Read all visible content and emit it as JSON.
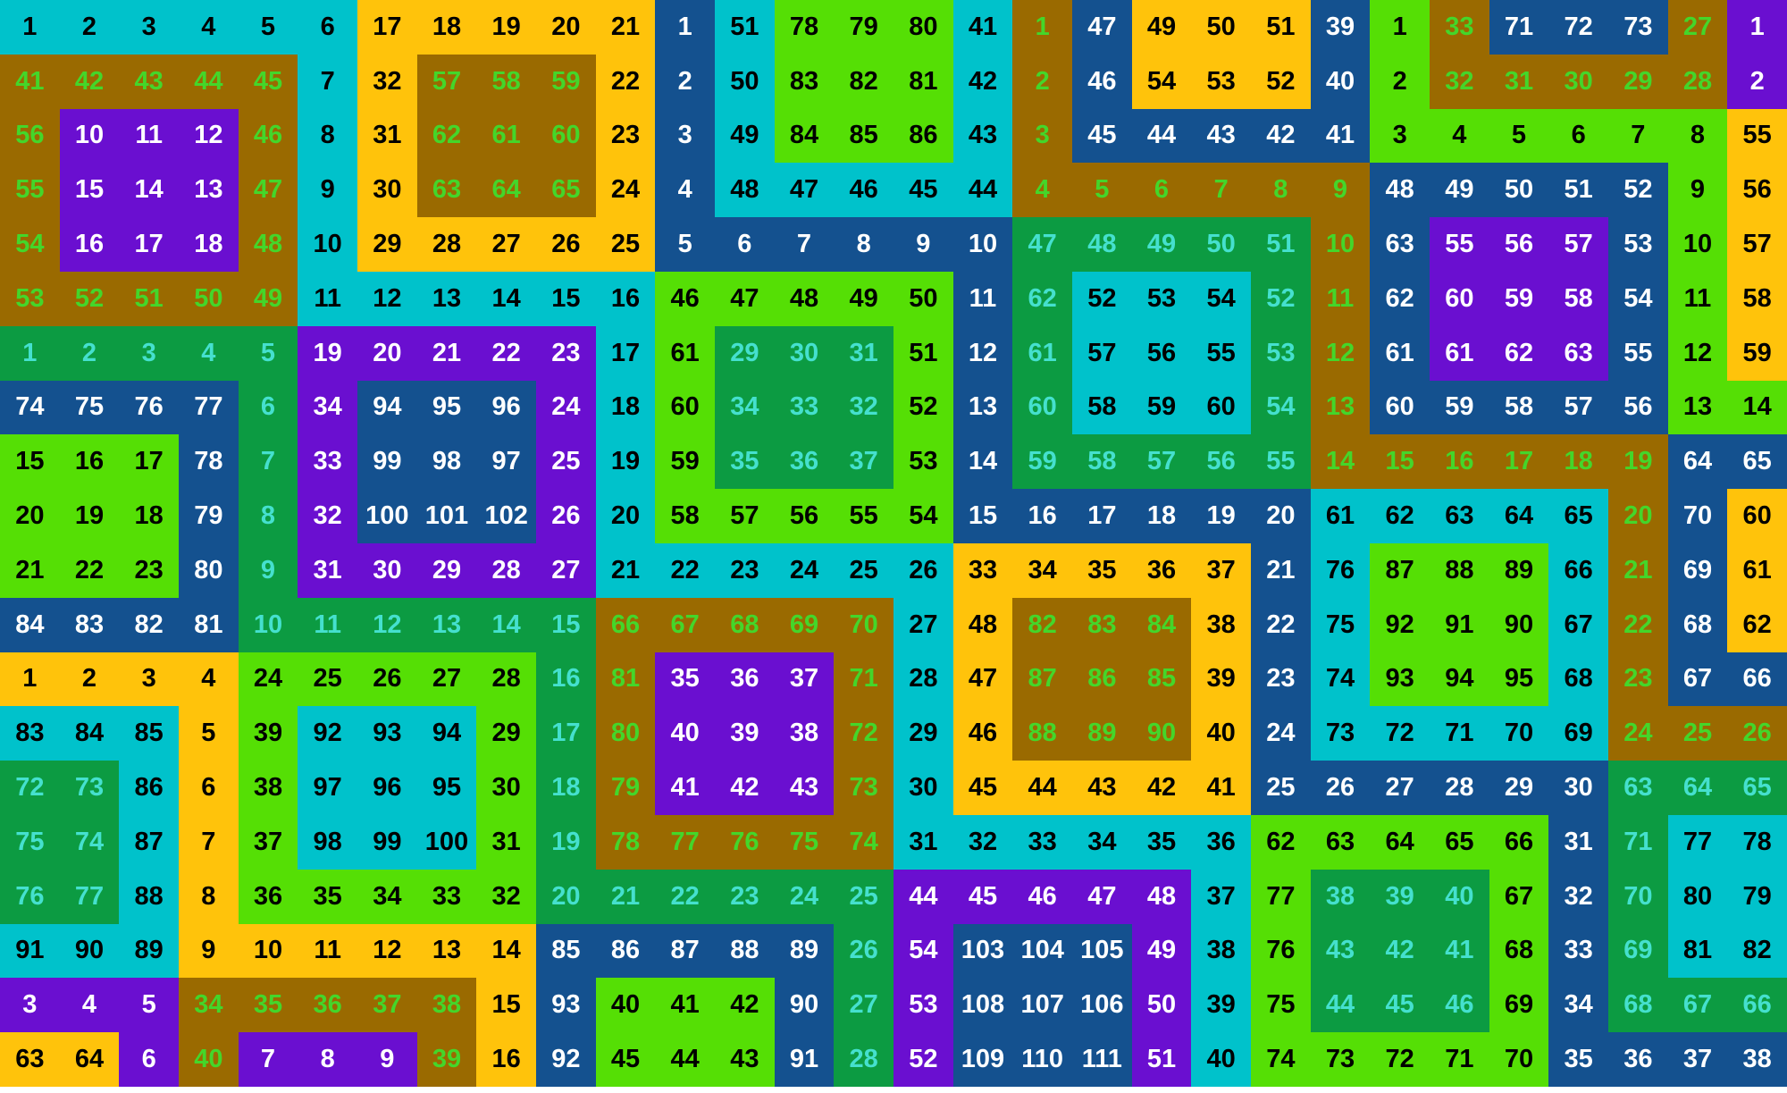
{
  "app": {
    "title": "Number Snakes Puzzle Board"
  },
  "grid": {
    "rows": 20,
    "cols": 30,
    "panels": 5,
    "panel_width_cols": 6,
    "palette": {
      "bg": {
        "C": "#00C2CB",
        "Y": "#FFC30B",
        "B": "#9A6A00",
        "P": "#6A0FD0",
        "N": "#14518F",
        "L": "#55DF05",
        "G": "#0C9B42"
      },
      "fg": {
        "k": "#000000",
        "w": "#FFFFFF",
        "g": "#44D62A",
        "c": "#45E0CE"
      }
    },
    "cells": [
      [
        "1|C|k",
        "2|C|k",
        "3|C|k",
        "4|C|k",
        "5|C|k",
        "6|C|k",
        "17|Y|k",
        "18|Y|k",
        "19|Y|k",
        "20|Y|k",
        "21|Y|k",
        "1|N|w",
        "51|C|k",
        "78|L|k",
        "79|L|k",
        "80|L|k",
        "41|C|k",
        "1|B|g",
        "47|N|w",
        "49|Y|k",
        "50|Y|k",
        "51|Y|k",
        "39|N|w",
        "1|L|k",
        "33|B|g",
        "71|N|w",
        "72|N|w",
        "73|N|w",
        "27|B|g",
        "1|P|w"
      ],
      [
        "41|B|g",
        "42|B|g",
        "43|B|g",
        "44|B|g",
        "45|B|g",
        "7|C|k",
        "32|Y|k",
        "57|B|g",
        "58|B|g",
        "59|B|g",
        "22|Y|k",
        "2|N|w",
        "50|C|k",
        "83|L|k",
        "82|L|k",
        "81|L|k",
        "42|C|k",
        "2|B|g",
        "46|N|w",
        "54|Y|k",
        "53|Y|k",
        "52|Y|k",
        "40|N|w",
        "2|L|k",
        "32|B|g",
        "31|B|g",
        "30|B|g",
        "29|B|g",
        "28|B|g",
        "2|P|w"
      ],
      [
        "56|B|g",
        "10|P|w",
        "11|P|w",
        "12|P|w",
        "46|B|g",
        "8|C|k",
        "31|Y|k",
        "62|B|g",
        "61|B|g",
        "60|B|g",
        "23|Y|k",
        "3|N|w",
        "49|C|k",
        "84|L|k",
        "85|L|k",
        "86|L|k",
        "43|C|k",
        "3|B|g",
        "45|N|w",
        "44|N|w",
        "43|N|w",
        "42|N|w",
        "41|N|w",
        "3|L|k",
        "4|L|k",
        "5|L|k",
        "6|L|k",
        "7|L|k",
        "8|L|k",
        "55|Y|k"
      ],
      [
        "55|B|g",
        "15|P|w",
        "14|P|w",
        "13|P|w",
        "47|B|g",
        "9|C|k",
        "30|Y|k",
        "63|B|g",
        "64|B|g",
        "65|B|g",
        "24|Y|k",
        "4|N|w",
        "48|C|k",
        "47|C|k",
        "46|C|k",
        "45|C|k",
        "44|C|k",
        "4|B|g",
        "5|B|g",
        "6|B|g",
        "7|B|g",
        "8|B|g",
        "9|B|g",
        "48|N|w",
        "49|N|w",
        "50|N|w",
        "51|N|w",
        "52|N|w",
        "9|L|k",
        "56|Y|k"
      ],
      [
        "54|B|g",
        "16|P|w",
        "17|P|w",
        "18|P|w",
        "48|B|g",
        "10|C|k",
        "29|Y|k",
        "28|Y|k",
        "27|Y|k",
        "26|Y|k",
        "25|Y|k",
        "5|N|w",
        "6|N|w",
        "7|N|w",
        "8|N|w",
        "9|N|w",
        "10|N|w",
        "47|G|c",
        "48|G|c",
        "49|G|c",
        "50|G|c",
        "51|G|c",
        "10|B|g",
        "63|N|w",
        "55|P|w",
        "56|P|w",
        "57|P|w",
        "53|N|w",
        "10|L|k",
        "57|Y|k"
      ],
      [
        "53|B|g",
        "52|B|g",
        "51|B|g",
        "50|B|g",
        "49|B|g",
        "11|C|k",
        "12|C|k",
        "13|C|k",
        "14|C|k",
        "15|C|k",
        "16|C|k",
        "46|L|k",
        "47|L|k",
        "48|L|k",
        "49|L|k",
        "50|L|k",
        "11|N|w",
        "62|G|c",
        "52|C|k",
        "53|C|k",
        "54|C|k",
        "52|G|c",
        "11|B|g",
        "62|N|w",
        "60|P|w",
        "59|P|w",
        "58|P|w",
        "54|N|w",
        "11|L|k",
        "58|Y|k"
      ],
      [
        "1|G|c",
        "2|G|c",
        "3|G|c",
        "4|G|c",
        "5|G|c",
        "19|P|w",
        "20|P|w",
        "21|P|w",
        "22|P|w",
        "23|P|w",
        "17|C|k",
        "61|L|k",
        "29|G|c",
        "30|G|c",
        "31|G|c",
        "51|L|k",
        "12|N|w",
        "61|G|c",
        "57|C|k",
        "56|C|k",
        "55|C|k",
        "53|G|c",
        "12|B|g",
        "61|N|w",
        "61|P|w",
        "62|P|w",
        "63|P|w",
        "55|N|w",
        "12|L|k",
        "59|Y|k"
      ],
      [
        "74|N|w",
        "75|N|w",
        "76|N|w",
        "77|N|w",
        "6|G|c",
        "34|P|w",
        "94|N|w",
        "95|N|w",
        "96|N|w",
        "24|P|w",
        "18|C|k",
        "60|L|k",
        "34|G|c",
        "33|G|c",
        "32|G|c",
        "52|L|k",
        "13|N|w",
        "60|G|c",
        "58|C|k",
        "59|C|k",
        "60|C|k",
        "54|G|c",
        "13|B|g",
        "60|N|w",
        "59|N|w",
        "58|N|w",
        "57|N|w",
        "56|N|w",
        "13|L|k",
        "14|L|k"
      ],
      [
        "15|L|k",
        "16|L|k",
        "17|L|k",
        "78|N|w",
        "7|G|c",
        "33|P|w",
        "99|N|w",
        "98|N|w",
        "97|N|w",
        "25|P|w",
        "19|C|k",
        "59|L|k",
        "35|G|c",
        "36|G|c",
        "37|G|c",
        "53|L|k",
        "14|N|w",
        "59|G|c",
        "58|G|c",
        "57|G|c",
        "56|G|c",
        "55|G|c",
        "14|B|g",
        "15|B|g",
        "16|B|g",
        "17|B|g",
        "18|B|g",
        "19|B|g",
        "64|N|w",
        "65|N|w"
      ],
      [
        "20|L|k",
        "19|L|k",
        "18|L|k",
        "79|N|w",
        "8|G|c",
        "32|P|w",
        "100|N|w",
        "101|N|w",
        "102|N|w",
        "26|P|w",
        "20|C|k",
        "58|L|k",
        "57|L|k",
        "56|L|k",
        "55|L|k",
        "54|L|k",
        "15|N|w",
        "16|N|w",
        "17|N|w",
        "18|N|w",
        "19|N|w",
        "20|N|w",
        "61|C|k",
        "62|C|k",
        "63|C|k",
        "64|C|k",
        "65|C|k",
        "20|B|g",
        "70|N|w",
        "60|Y|k"
      ],
      [
        "21|L|k",
        "22|L|k",
        "23|L|k",
        "80|N|w",
        "9|G|c",
        "31|P|w",
        "30|P|w",
        "29|P|w",
        "28|P|w",
        "27|P|w",
        "21|C|k",
        "22|C|k",
        "23|C|k",
        "24|C|k",
        "25|C|k",
        "26|C|k",
        "33|Y|k",
        "34|Y|k",
        "35|Y|k",
        "36|Y|k",
        "37|Y|k",
        "21|N|w",
        "76|C|k",
        "87|L|k",
        "88|L|k",
        "89|L|k",
        "66|C|k",
        "21|B|g",
        "69|N|w",
        "61|Y|k"
      ],
      [
        "84|N|w",
        "83|N|w",
        "82|N|w",
        "81|N|w",
        "10|G|c",
        "11|G|c",
        "12|G|c",
        "13|G|c",
        "14|G|c",
        "15|G|c",
        "66|B|g",
        "67|B|g",
        "68|B|g",
        "69|B|g",
        "70|B|g",
        "27|C|k",
        "48|Y|k",
        "82|B|g",
        "83|B|g",
        "84|B|g",
        "38|Y|k",
        "22|N|w",
        "75|C|k",
        "92|L|k",
        "91|L|k",
        "90|L|k",
        "67|C|k",
        "22|B|g",
        "68|N|w",
        "62|Y|k"
      ],
      [
        "1|Y|k",
        "2|Y|k",
        "3|Y|k",
        "4|Y|k",
        "24|L|k",
        "25|L|k",
        "26|L|k",
        "27|L|k",
        "28|L|k",
        "16|G|c",
        "81|B|g",
        "35|P|w",
        "36|P|w",
        "37|P|w",
        "71|B|g",
        "28|C|k",
        "47|Y|k",
        "87|B|g",
        "86|B|g",
        "85|B|g",
        "39|Y|k",
        "23|N|w",
        "74|C|k",
        "93|L|k",
        "94|L|k",
        "95|L|k",
        "68|C|k",
        "23|B|g",
        "67|N|w",
        "66|N|w"
      ],
      [
        "83|C|k",
        "84|C|k",
        "85|C|k",
        "5|Y|k",
        "39|L|k",
        "92|C|k",
        "93|C|k",
        "94|C|k",
        "29|L|k",
        "17|G|c",
        "80|B|g",
        "40|P|w",
        "39|P|w",
        "38|P|w",
        "72|B|g",
        "29|C|k",
        "46|Y|k",
        "88|B|g",
        "89|B|g",
        "90|B|g",
        "40|Y|k",
        "24|N|w",
        "73|C|k",
        "72|C|k",
        "71|C|k",
        "70|C|k",
        "69|C|k",
        "24|B|g",
        "25|B|g",
        "26|B|g"
      ],
      [
        "72|G|c",
        "73|G|c",
        "86|C|k",
        "6|Y|k",
        "38|L|k",
        "97|C|k",
        "96|C|k",
        "95|C|k",
        "30|L|k",
        "18|G|c",
        "79|B|g",
        "41|P|w",
        "42|P|w",
        "43|P|w",
        "73|B|g",
        "30|C|k",
        "45|Y|k",
        "44|Y|k",
        "43|Y|k",
        "42|Y|k",
        "41|Y|k",
        "25|N|w",
        "26|N|w",
        "27|N|w",
        "28|N|w",
        "29|N|w",
        "30|N|w",
        "63|G|c",
        "64|G|c",
        "65|G|c"
      ],
      [
        "75|G|c",
        "74|G|c",
        "87|C|k",
        "7|Y|k",
        "37|L|k",
        "98|C|k",
        "99|C|k",
        "100|C|k",
        "31|L|k",
        "19|G|c",
        "78|B|g",
        "77|B|g",
        "76|B|g",
        "75|B|g",
        "74|B|g",
        "31|C|k",
        "32|C|k",
        "33|C|k",
        "34|C|k",
        "35|C|k",
        "36|C|k",
        "62|L|k",
        "63|L|k",
        "64|L|k",
        "65|L|k",
        "66|L|k",
        "31|N|w",
        "71|G|c",
        "77|C|k",
        "78|C|k"
      ],
      [
        "76|G|c",
        "77|G|c",
        "88|C|k",
        "8|Y|k",
        "36|L|k",
        "35|L|k",
        "34|L|k",
        "33|L|k",
        "32|L|k",
        "20|G|c",
        "21|G|c",
        "22|G|c",
        "23|G|c",
        "24|G|c",
        "25|G|c",
        "44|P|w",
        "45|P|w",
        "46|P|w",
        "47|P|w",
        "48|P|w",
        "37|C|k",
        "77|L|k",
        "38|G|c",
        "39|G|c",
        "40|G|c",
        "67|L|k",
        "32|N|w",
        "70|G|c",
        "80|C|k",
        "79|C|k"
      ],
      [
        "91|C|k",
        "90|C|k",
        "89|C|k",
        "9|Y|k",
        "10|Y|k",
        "11|Y|k",
        "12|Y|k",
        "13|Y|k",
        "14|Y|k",
        "85|N|w",
        "86|N|w",
        "87|N|w",
        "88|N|w",
        "89|N|w",
        "26|G|c",
        "54|P|w",
        "103|N|w",
        "104|N|w",
        "105|N|w",
        "49|P|w",
        "38|C|k",
        "76|L|k",
        "43|G|c",
        "42|G|c",
        "41|G|c",
        "68|L|k",
        "33|N|w",
        "69|G|c",
        "81|C|k",
        "82|C|k"
      ],
      [
        "3|P|w",
        "4|P|w",
        "5|P|w",
        "34|B|g",
        "35|B|g",
        "36|B|g",
        "37|B|g",
        "38|B|g",
        "15|Y|k",
        "93|N|w",
        "40|L|k",
        "41|L|k",
        "42|L|k",
        "90|N|w",
        "27|G|c",
        "53|P|w",
        "108|N|w",
        "107|N|w",
        "106|N|w",
        "50|P|w",
        "39|C|k",
        "75|L|k",
        "44|G|c",
        "45|G|c",
        "46|G|c",
        "69|L|k",
        "34|N|w",
        "68|G|c",
        "67|G|c",
        "66|G|c"
      ],
      [
        "63|Y|k",
        "64|Y|k",
        "6|P|w",
        "40|B|g",
        "7|P|w",
        "8|P|w",
        "9|P|w",
        "39|B|g",
        "16|Y|k",
        "92|N|w",
        "45|L|k",
        "44|L|k",
        "43|L|k",
        "91|N|w",
        "28|G|c",
        "52|P|w",
        "109|N|w",
        "110|N|w",
        "111|N|w",
        "51|P|w",
        "40|C|k",
        "74|L|k",
        "73|L|k",
        "72|L|k",
        "71|L|k",
        "70|L|k",
        "35|N|w",
        "36|N|w",
        "37|N|w",
        "38|N|w"
      ]
    ]
  }
}
